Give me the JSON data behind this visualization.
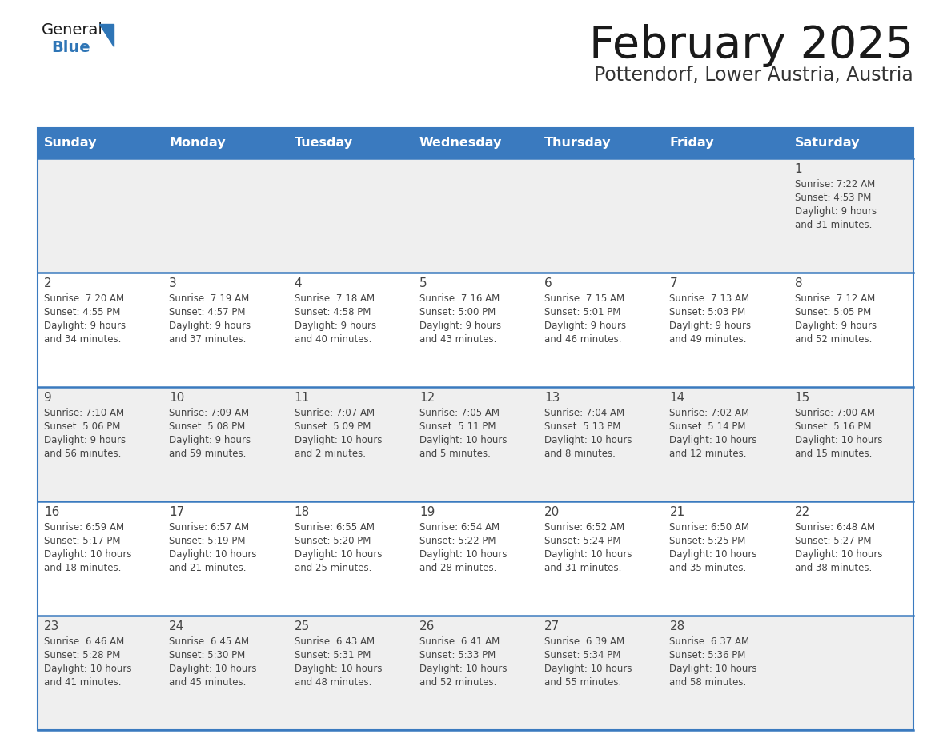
{
  "title": "February 2025",
  "subtitle": "Pottendorf, Lower Austria, Austria",
  "days_of_week": [
    "Sunday",
    "Monday",
    "Tuesday",
    "Wednesday",
    "Thursday",
    "Friday",
    "Saturday"
  ],
  "header_bg": "#3a7abf",
  "header_text": "#ffffff",
  "row_bg_even": "#efefef",
  "row_bg_odd": "#ffffff",
  "separator_color": "#3a7abf",
  "text_color": "#444444",
  "title_color": "#1a1a1a",
  "subtitle_color": "#333333",
  "logo_general_color": "#1a1a1a",
  "logo_blue_color": "#2e75b6",
  "calendar_data": [
    {
      "day": 1,
      "col": 6,
      "row": 0,
      "sunrise": "7:22 AM",
      "sunset": "4:53 PM",
      "daylight": "9 hours and 31 minutes"
    },
    {
      "day": 2,
      "col": 0,
      "row": 1,
      "sunrise": "7:20 AM",
      "sunset": "4:55 PM",
      "daylight": "9 hours and 34 minutes"
    },
    {
      "day": 3,
      "col": 1,
      "row": 1,
      "sunrise": "7:19 AM",
      "sunset": "4:57 PM",
      "daylight": "9 hours and 37 minutes"
    },
    {
      "day": 4,
      "col": 2,
      "row": 1,
      "sunrise": "7:18 AM",
      "sunset": "4:58 PM",
      "daylight": "9 hours and 40 minutes"
    },
    {
      "day": 5,
      "col": 3,
      "row": 1,
      "sunrise": "7:16 AM",
      "sunset": "5:00 PM",
      "daylight": "9 hours and 43 minutes"
    },
    {
      "day": 6,
      "col": 4,
      "row": 1,
      "sunrise": "7:15 AM",
      "sunset": "5:01 PM",
      "daylight": "9 hours and 46 minutes"
    },
    {
      "day": 7,
      "col": 5,
      "row": 1,
      "sunrise": "7:13 AM",
      "sunset": "5:03 PM",
      "daylight": "9 hours and 49 minutes"
    },
    {
      "day": 8,
      "col": 6,
      "row": 1,
      "sunrise": "7:12 AM",
      "sunset": "5:05 PM",
      "daylight": "9 hours and 52 minutes"
    },
    {
      "day": 9,
      "col": 0,
      "row": 2,
      "sunrise": "7:10 AM",
      "sunset": "5:06 PM",
      "daylight": "9 hours and 56 minutes"
    },
    {
      "day": 10,
      "col": 1,
      "row": 2,
      "sunrise": "7:09 AM",
      "sunset": "5:08 PM",
      "daylight": "9 hours and 59 minutes"
    },
    {
      "day": 11,
      "col": 2,
      "row": 2,
      "sunrise": "7:07 AM",
      "sunset": "5:09 PM",
      "daylight": "10 hours and 2 minutes"
    },
    {
      "day": 12,
      "col": 3,
      "row": 2,
      "sunrise": "7:05 AM",
      "sunset": "5:11 PM",
      "daylight": "10 hours and 5 minutes"
    },
    {
      "day": 13,
      "col": 4,
      "row": 2,
      "sunrise": "7:04 AM",
      "sunset": "5:13 PM",
      "daylight": "10 hours and 8 minutes"
    },
    {
      "day": 14,
      "col": 5,
      "row": 2,
      "sunrise": "7:02 AM",
      "sunset": "5:14 PM",
      "daylight": "10 hours and 12 minutes"
    },
    {
      "day": 15,
      "col": 6,
      "row": 2,
      "sunrise": "7:00 AM",
      "sunset": "5:16 PM",
      "daylight": "10 hours and 15 minutes"
    },
    {
      "day": 16,
      "col": 0,
      "row": 3,
      "sunrise": "6:59 AM",
      "sunset": "5:17 PM",
      "daylight": "10 hours and 18 minutes"
    },
    {
      "day": 17,
      "col": 1,
      "row": 3,
      "sunrise": "6:57 AM",
      "sunset": "5:19 PM",
      "daylight": "10 hours and 21 minutes"
    },
    {
      "day": 18,
      "col": 2,
      "row": 3,
      "sunrise": "6:55 AM",
      "sunset": "5:20 PM",
      "daylight": "10 hours and 25 minutes"
    },
    {
      "day": 19,
      "col": 3,
      "row": 3,
      "sunrise": "6:54 AM",
      "sunset": "5:22 PM",
      "daylight": "10 hours and 28 minutes"
    },
    {
      "day": 20,
      "col": 4,
      "row": 3,
      "sunrise": "6:52 AM",
      "sunset": "5:24 PM",
      "daylight": "10 hours and 31 minutes"
    },
    {
      "day": 21,
      "col": 5,
      "row": 3,
      "sunrise": "6:50 AM",
      "sunset": "5:25 PM",
      "daylight": "10 hours and 35 minutes"
    },
    {
      "day": 22,
      "col": 6,
      "row": 3,
      "sunrise": "6:48 AM",
      "sunset": "5:27 PM",
      "daylight": "10 hours and 38 minutes"
    },
    {
      "day": 23,
      "col": 0,
      "row": 4,
      "sunrise": "6:46 AM",
      "sunset": "5:28 PM",
      "daylight": "10 hours and 41 minutes"
    },
    {
      "day": 24,
      "col": 1,
      "row": 4,
      "sunrise": "6:45 AM",
      "sunset": "5:30 PM",
      "daylight": "10 hours and 45 minutes"
    },
    {
      "day": 25,
      "col": 2,
      "row": 4,
      "sunrise": "6:43 AM",
      "sunset": "5:31 PM",
      "daylight": "10 hours and 48 minutes"
    },
    {
      "day": 26,
      "col": 3,
      "row": 4,
      "sunrise": "6:41 AM",
      "sunset": "5:33 PM",
      "daylight": "10 hours and 52 minutes"
    },
    {
      "day": 27,
      "col": 4,
      "row": 4,
      "sunrise": "6:39 AM",
      "sunset": "5:34 PM",
      "daylight": "10 hours and 55 minutes"
    },
    {
      "day": 28,
      "col": 5,
      "row": 4,
      "sunrise": "6:37 AM",
      "sunset": "5:36 PM",
      "daylight": "10 hours and 58 minutes"
    }
  ]
}
